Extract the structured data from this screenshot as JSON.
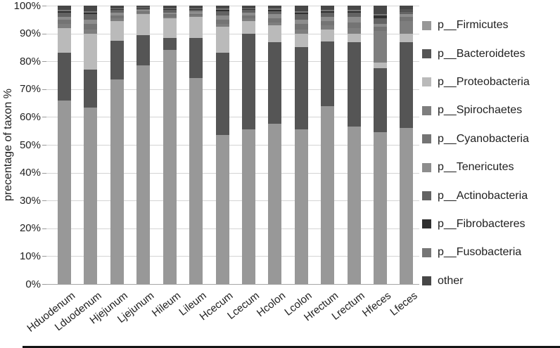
{
  "figure": {
    "ylabel": "precentage of taxon %"
  },
  "chart_data": {
    "type": "bar",
    "stacked": true,
    "title": "",
    "xlabel": "",
    "ylabel": "precentage of taxon %",
    "ylim": [
      0,
      100
    ],
    "grid": true,
    "legend_position": "right",
    "yticks": [
      {
        "value": 0,
        "label": "0%"
      },
      {
        "value": 10,
        "label": "10%"
      },
      {
        "value": 20,
        "label": "20%"
      },
      {
        "value": 30,
        "label": "30%"
      },
      {
        "value": 40,
        "label": "40%"
      },
      {
        "value": 50,
        "label": "50%"
      },
      {
        "value": 60,
        "label": "60%"
      },
      {
        "value": 70,
        "label": "70%"
      },
      {
        "value": 80,
        "label": "80%"
      },
      {
        "value": 90,
        "label": "90%"
      },
      {
        "value": 100,
        "label": "100%"
      }
    ],
    "categories": [
      "Hduodenum",
      "Lduodenum",
      "Hjejunum",
      "Ljejunum",
      "Hileum",
      "Lileum",
      "Hcecum",
      "Lcecum",
      "Hcolon",
      "Lcolon",
      "Hrectum",
      "Lrectum",
      "Hfeces",
      "Lfeces"
    ],
    "series": [
      {
        "name": "p__Firmicutes",
        "color": "#989898",
        "values": [
          66,
          63.5,
          73.5,
          78.5,
          84,
          74,
          53.5,
          55.5,
          57.5,
          55.5,
          64,
          56.5,
          54.5,
          56
        ]
      },
      {
        "name": "p__Bacteroidetes",
        "color": "#555555",
        "values": [
          17,
          13.5,
          14,
          11,
          4.5,
          14.5,
          29.5,
          34.5,
          29.5,
          29.5,
          23,
          30.5,
          23,
          31
        ]
      },
      {
        "name": "p__Proteobacteria",
        "color": "#bababa",
        "values": [
          9,
          13,
          7,
          7.5,
          7,
          7.5,
          9.5,
          4.5,
          6,
          5,
          4.5,
          3,
          2,
          3
        ]
      },
      {
        "name": "p__Spirochaetes",
        "color": "#7e7e7e",
        "values": [
          1.5,
          1.5,
          1,
          0.5,
          0.5,
          0.5,
          1,
          1,
          1,
          1.5,
          1.5,
          2,
          11.5,
          4.5
        ]
      },
      {
        "name": "p__Cyanobacteria",
        "color": "#747474",
        "values": [
          1.5,
          2,
          1,
          0.5,
          1,
          0.5,
          1.5,
          1,
          1.5,
          2,
          1.5,
          2,
          1.5,
          1.5
        ]
      },
      {
        "name": "p__Tenericutes",
        "color": "#8d8d8d",
        "values": [
          1,
          1.5,
          1,
          0.5,
          0.5,
          1,
          1.5,
          1,
          1.5,
          1.5,
          1.5,
          2,
          1,
          1
        ]
      },
      {
        "name": "p__Actinobacteria",
        "color": "#636363",
        "values": [
          1.5,
          2,
          1,
          0.5,
          1,
          0.5,
          1.5,
          1,
          1,
          2,
          1.5,
          1.5,
          2,
          1
        ]
      },
      {
        "name": "p__Fibrobacteres",
        "color": "#303030",
        "values": [
          0.5,
          0.5,
          0.3,
          0.2,
          0.3,
          0.2,
          0.5,
          0.3,
          0.5,
          0.5,
          0.5,
          0.5,
          1,
          0.3
        ]
      },
      {
        "name": "p__Fusobacteria",
        "color": "#767676",
        "values": [
          0.5,
          0.5,
          0.2,
          0.3,
          0.2,
          0.3,
          0.5,
          0.2,
          0.5,
          0.5,
          0.5,
          0.5,
          0.5,
          0.2
        ]
      },
      {
        "name": "other",
        "color": "#474747",
        "values": [
          1.5,
          2,
          1,
          0.5,
          1,
          1,
          1,
          1,
          1,
          2,
          1.5,
          1.5,
          3,
          1.5
        ]
      }
    ]
  }
}
